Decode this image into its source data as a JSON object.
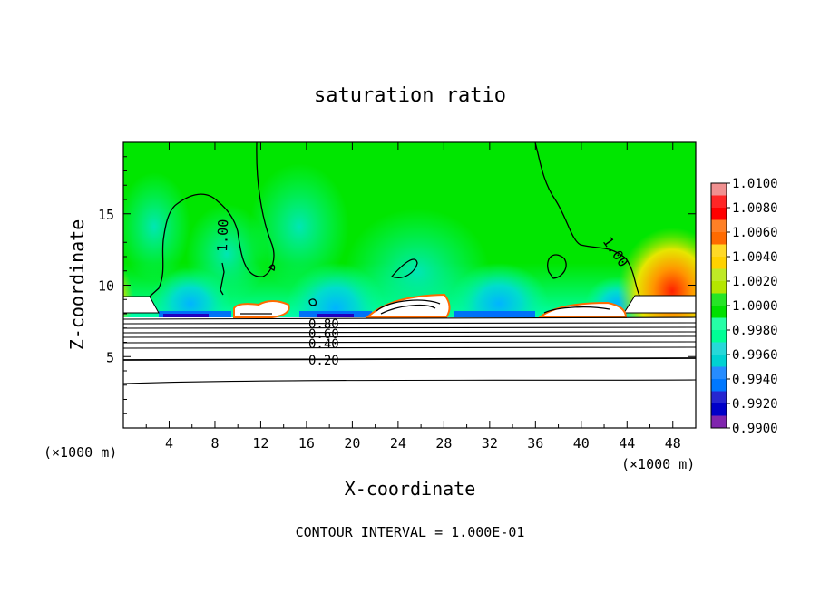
{
  "chart_data": {
    "type": "heatmap",
    "title": "saturation ratio",
    "xlabel": "X-coordinate",
    "ylabel": "Z-coordinate",
    "x_unit_left": "(×1000 m)",
    "x_unit_right": "(×1000 m)",
    "xlim": [
      0,
      50
    ],
    "ylim": [
      0,
      20
    ],
    "x_ticks": [
      4,
      8,
      12,
      16,
      20,
      24,
      28,
      32,
      36,
      40,
      44,
      48
    ],
    "y_ticks": [
      5,
      10,
      15
    ],
    "colorbar": {
      "ticks": [
        "1.0100",
        "1.0080",
        "1.0060",
        "1.0040",
        "1.0020",
        "1.0000",
        "0.9980",
        "0.9960",
        "0.9940",
        "0.9920",
        "0.9900"
      ],
      "colors": [
        "#f09090",
        "#ff0000",
        "#ff6a00",
        "#ffd200",
        "#b4e600",
        "#00e000",
        "#00ff96",
        "#00d2d2",
        "#0078ff",
        "#0000c8",
        "#6a00a0"
      ]
    },
    "contour_labels": [
      {
        "text": "1.00",
        "x": 7,
        "z": 13.2
      },
      {
        "text": "1.00",
        "x": 43,
        "z": 12.5
      },
      {
        "text": "0.80",
        "x": 18,
        "z": 7.6
      },
      {
        "text": "0.60",
        "x": 18,
        "z": 6.9
      },
      {
        "text": "0.40",
        "x": 18,
        "z": 6.1
      },
      {
        "text": "0.20",
        "x": 18,
        "z": 4.8
      }
    ],
    "footer": "CONTOUR INTERVAL = 1.000E-01"
  }
}
